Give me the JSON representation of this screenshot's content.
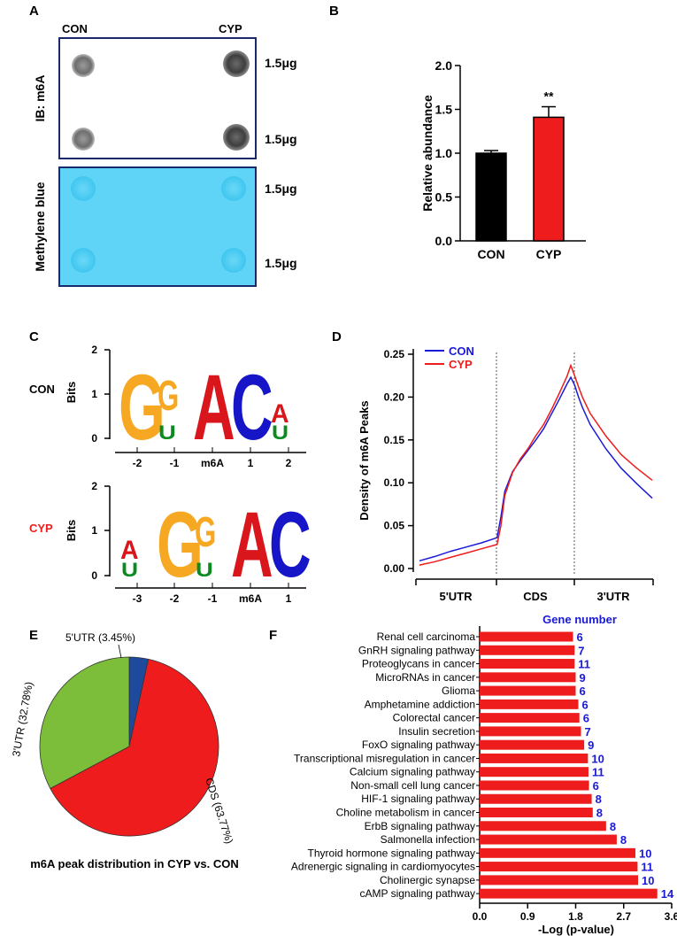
{
  "colors": {
    "black": "#000000",
    "red": "#ee1c1c",
    "blue": "#1a1ad6",
    "green": "#7cbd3a",
    "pie_blue": "#1e4a9e",
    "methylene": "#5fd4f6",
    "logo_orange": "#f7a823",
    "logo_green": "#0a8a1f",
    "logo_red": "#d9161b",
    "logo_blue": "#1616c8"
  },
  "panel_a": {
    "letter": "A",
    "col_con": "CON",
    "col_cyp": "CYP",
    "ib_label": "IB: m6A",
    "mb_label": "Methylene blue",
    "amounts": [
      "1.5μg",
      "1.5μg",
      "1.5μg",
      "1.5μg"
    ]
  },
  "panel_b": {
    "letter": "B",
    "sig": "**"
  },
  "panel_c": {
    "letter": "C",
    "row1_label": "CON",
    "row2_label": "CYP",
    "bits_label": "Bits",
    "row1_ticks": [
      "2",
      "1",
      "0"
    ],
    "row2_ticks": [
      "2",
      "1",
      "0"
    ],
    "row1_positions": [
      "-2",
      "-1",
      "m6A",
      "1",
      "2"
    ],
    "row2_positions": [
      "-3",
      "-2",
      "-1",
      "m6A",
      "1"
    ]
  },
  "panel_d": {
    "letter": "D"
  },
  "panel_e": {
    "letter": "E"
  },
  "panel_f": {
    "letter": "F",
    "gene_number_label": "Gene number"
  },
  "chart_data": [
    {
      "id": "B",
      "type": "bar",
      "categories": [
        "CON",
        "CYP"
      ],
      "values": [
        1.0,
        1.41
      ],
      "errors": [
        0.03,
        0.12
      ],
      "colors": [
        "#000000",
        "#ee1c1c"
      ],
      "ylabel": "Relative abundance",
      "ylim": [
        0,
        2.0
      ],
      "yticks": [
        "0.0",
        "0.5",
        "1.0",
        "1.5",
        "2.0"
      ],
      "annotation": "**"
    },
    {
      "id": "D",
      "type": "line",
      "ylabel": "Density of m6A Peaks",
      "ylim": [
        0,
        0.25
      ],
      "yticks": [
        "0.00",
        "0.05",
        "0.10",
        "0.15",
        "0.20",
        "0.25"
      ],
      "regions": [
        "5'UTR",
        "CDS",
        "3'UTR"
      ],
      "x": [
        0,
        0.2,
        0.4,
        0.6,
        0.8,
        1.0,
        1.05,
        1.1,
        1.2,
        1.3,
        1.4,
        1.5,
        1.6,
        1.7,
        1.8,
        1.9,
        1.95,
        2.0,
        2.05,
        2.1,
        2.2,
        2.4,
        2.6,
        2.8,
        3.0
      ],
      "series": [
        {
          "name": "CON",
          "color": "#1a1ad6",
          "values": [
            0.009,
            0.014,
            0.02,
            0.025,
            0.03,
            0.036,
            0.06,
            0.09,
            0.113,
            0.126,
            0.138,
            0.15,
            0.163,
            0.18,
            0.197,
            0.215,
            0.223,
            0.214,
            0.2,
            0.188,
            0.168,
            0.14,
            0.117,
            0.099,
            0.082
          ]
        },
        {
          "name": "CYP",
          "color": "#ee1c1c",
          "values": [
            0.004,
            0.008,
            0.013,
            0.018,
            0.023,
            0.028,
            0.05,
            0.085,
            0.112,
            0.128,
            0.14,
            0.155,
            0.168,
            0.185,
            0.204,
            0.224,
            0.237,
            0.225,
            0.212,
            0.2,
            0.181,
            0.155,
            0.133,
            0.117,
            0.103
          ]
        }
      ]
    },
    {
      "id": "E",
      "type": "pie",
      "title": "m6A peak distribution in CYP vs. CON",
      "labels": [
        "5'UTR",
        "CDS",
        "3'UTR"
      ],
      "values": [
        3.45,
        63.77,
        32.78
      ],
      "label_texts": [
        "5'UTR (3.45%)",
        "CDS (63.77%)",
        "3'UTR (32.78%)"
      ],
      "colors": [
        "#1e4a9e",
        "#ee1c1c",
        "#7cbd3a"
      ]
    },
    {
      "id": "F",
      "type": "bar",
      "orientation": "horizontal",
      "xlabel": "-Log (p-value)",
      "xlim": [
        0,
        3.6
      ],
      "xticks": [
        "0.0",
        "0.9",
        "1.8",
        "2.7",
        "3.6"
      ],
      "categories": [
        "Renal cell carcinoma",
        "GnRH signaling pathway",
        "Proteoglycans in cancer",
        "MicroRNAs in cancer",
        "Glioma",
        "Amphetamine addiction",
        "Colorectal cancer",
        "Insulin secretion",
        "FoxO signaling pathway",
        "Transcriptional misregulation in cancer",
        "Calcium signaling pathway",
        "Non-small cell lung cancer",
        "HIF-1 signaling pathway",
        "Choline metabolism in cancer",
        "ErbB signaling pathway",
        "Salmonella infection",
        "Thyroid hormone signaling pathway",
        "Adrenergic signaling in cardiomyocytes",
        "Cholinergic synapse",
        "cAMP signaling pathway"
      ],
      "values": [
        1.75,
        1.78,
        1.78,
        1.8,
        1.8,
        1.85,
        1.87,
        1.9,
        1.96,
        2.03,
        2.04,
        2.05,
        2.1,
        2.12,
        2.37,
        2.57,
        2.92,
        2.96,
        2.97,
        3.33
      ],
      "gene_numbers": [
        "6",
        "7",
        "11",
        "9",
        "6",
        "6",
        "6",
        "7",
        "9",
        "10",
        "11",
        "6",
        "8",
        "8",
        "8",
        "8",
        "10",
        "11",
        "10",
        "14"
      ]
    }
  ]
}
